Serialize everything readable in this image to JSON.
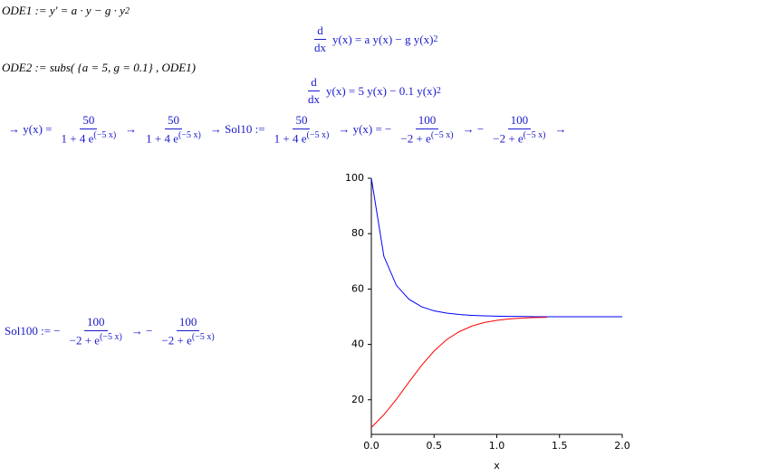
{
  "worksheet": {
    "ode1_input": {
      "text": "ODE1 := y' = a · y − g · y",
      "exp": "2"
    },
    "ode1_output": {
      "d": "d",
      "dx": "dx",
      "rhs": "y(x) = a y(x) − g y(x)",
      "exp": "2"
    },
    "ode2_input": "ODE2 := subs( {a = 5,  g = 0.1} , ODE1)",
    "ode2_output": {
      "d": "d",
      "dx": "dx",
      "rhs": "y(x) = 5 y(x) − 0.1 y(x)",
      "exp": "2"
    },
    "solutions_row": {
      "items": [
        {
          "prefix": "→ y(x) =",
          "num": "50",
          "den": "1 + 4 e",
          "exp": "(−5 x)"
        },
        {
          "prefix": "→",
          "num": "50",
          "den": "1 + 4 e",
          "exp": "(−5 x)"
        },
        {
          "prefix": "→ Sol10 :=",
          "num": "50",
          "den": "1 + 4 e",
          "exp": "(−5 x)"
        },
        {
          "prefix": "→ y(x) = −",
          "num": "100",
          "den": "−2 + e",
          "exp": "(−5 x)"
        },
        {
          "prefix": "→ −",
          "num": "100",
          "den": "−2 + e",
          "exp": "(−5 x)"
        }
      ],
      "trailing": "→"
    },
    "sol100_row": {
      "items": [
        {
          "prefix": "Sol100 := −",
          "num": "100",
          "den": "−2 + e",
          "exp": "(−5 x)"
        },
        {
          "prefix": "→ −",
          "num": "100",
          "den": "−2 + e",
          "exp": "(−5 x)"
        }
      ]
    }
  },
  "chart_data": {
    "type": "line",
    "x_label": "x",
    "xlim": [
      0,
      2
    ],
    "ylim": [
      7.5,
      100
    ],
    "xticks": [
      {
        "value": 0,
        "label": "0.0"
      },
      {
        "value": 0.5,
        "label": "0.5"
      },
      {
        "value": 1,
        "label": "1.0"
      },
      {
        "value": 1.5,
        "label": "1.5"
      },
      {
        "value": 2,
        "label": "2.0"
      }
    ],
    "yticks": [
      20,
      40,
      60,
      80,
      100
    ],
    "series": [
      {
        "color": "#0000ff",
        "x": [
          0,
          0.1,
          0.2,
          0.3,
          0.4,
          0.5,
          0.6,
          0.7,
          0.8,
          0.9,
          1.0,
          1.1,
          1.2,
          1.3,
          1.4,
          1.5,
          1.6,
          1.7,
          1.8,
          1.9,
          2.0
        ],
        "values": [
          100,
          71.8,
          61.3,
          56.3,
          53.6,
          52.1,
          51.3,
          50.8,
          50.5,
          50.3,
          50.2,
          50.1,
          50.1,
          50.0,
          50.0,
          50.0,
          50.0,
          50.0,
          50.0,
          50.0,
          50.0
        ]
      },
      {
        "color": "#ff0000",
        "x": [
          0,
          0.1,
          0.2,
          0.3,
          0.4,
          0.5,
          0.6,
          0.7,
          0.8,
          0.9,
          1.0,
          1.1,
          1.2,
          1.3,
          1.4
        ],
        "values": [
          10,
          14.6,
          20.2,
          26.4,
          32.4,
          37.6,
          41.7,
          44.6,
          46.6,
          47.9,
          48.7,
          49.2,
          49.5,
          49.7,
          49.8
        ]
      }
    ]
  }
}
